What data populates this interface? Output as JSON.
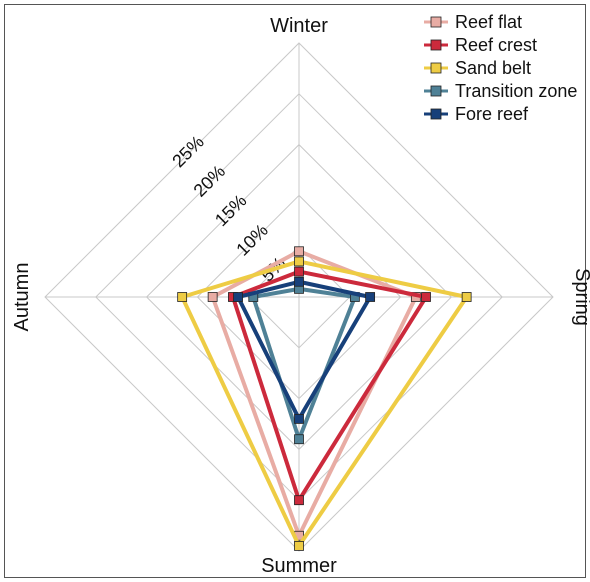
{
  "chart_data": {
    "type": "radar",
    "axes": [
      "Winter",
      "Spring",
      "Summer",
      "Autumn"
    ],
    "rings": [
      5,
      10,
      15,
      20,
      25
    ],
    "ring_labels": [
      "5%",
      "10%",
      "15%",
      "20%",
      "25%"
    ],
    "rmax": 25,
    "grid": true,
    "legend_position": "top-right",
    "series": [
      {
        "name": "Reef flat",
        "color": "#e8aca4",
        "values": [
          4.5,
          11.5,
          23.5,
          8.5
        ]
      },
      {
        "name": "Reef crest",
        "color": "#cc2a3c",
        "values": [
          2.5,
          12.5,
          20.0,
          6.5
        ]
      },
      {
        "name": "Sand belt",
        "color": "#eecc44",
        "values": [
          3.5,
          16.5,
          24.5,
          11.5
        ]
      },
      {
        "name": "Transition zone",
        "color": "#4f8196",
        "values": [
          0.8,
          5.5,
          14.0,
          4.5
        ]
      },
      {
        "name": "Fore reef",
        "color": "#17407a",
        "values": [
          1.5,
          7.0,
          12.0,
          6.0
        ]
      }
    ]
  }
}
